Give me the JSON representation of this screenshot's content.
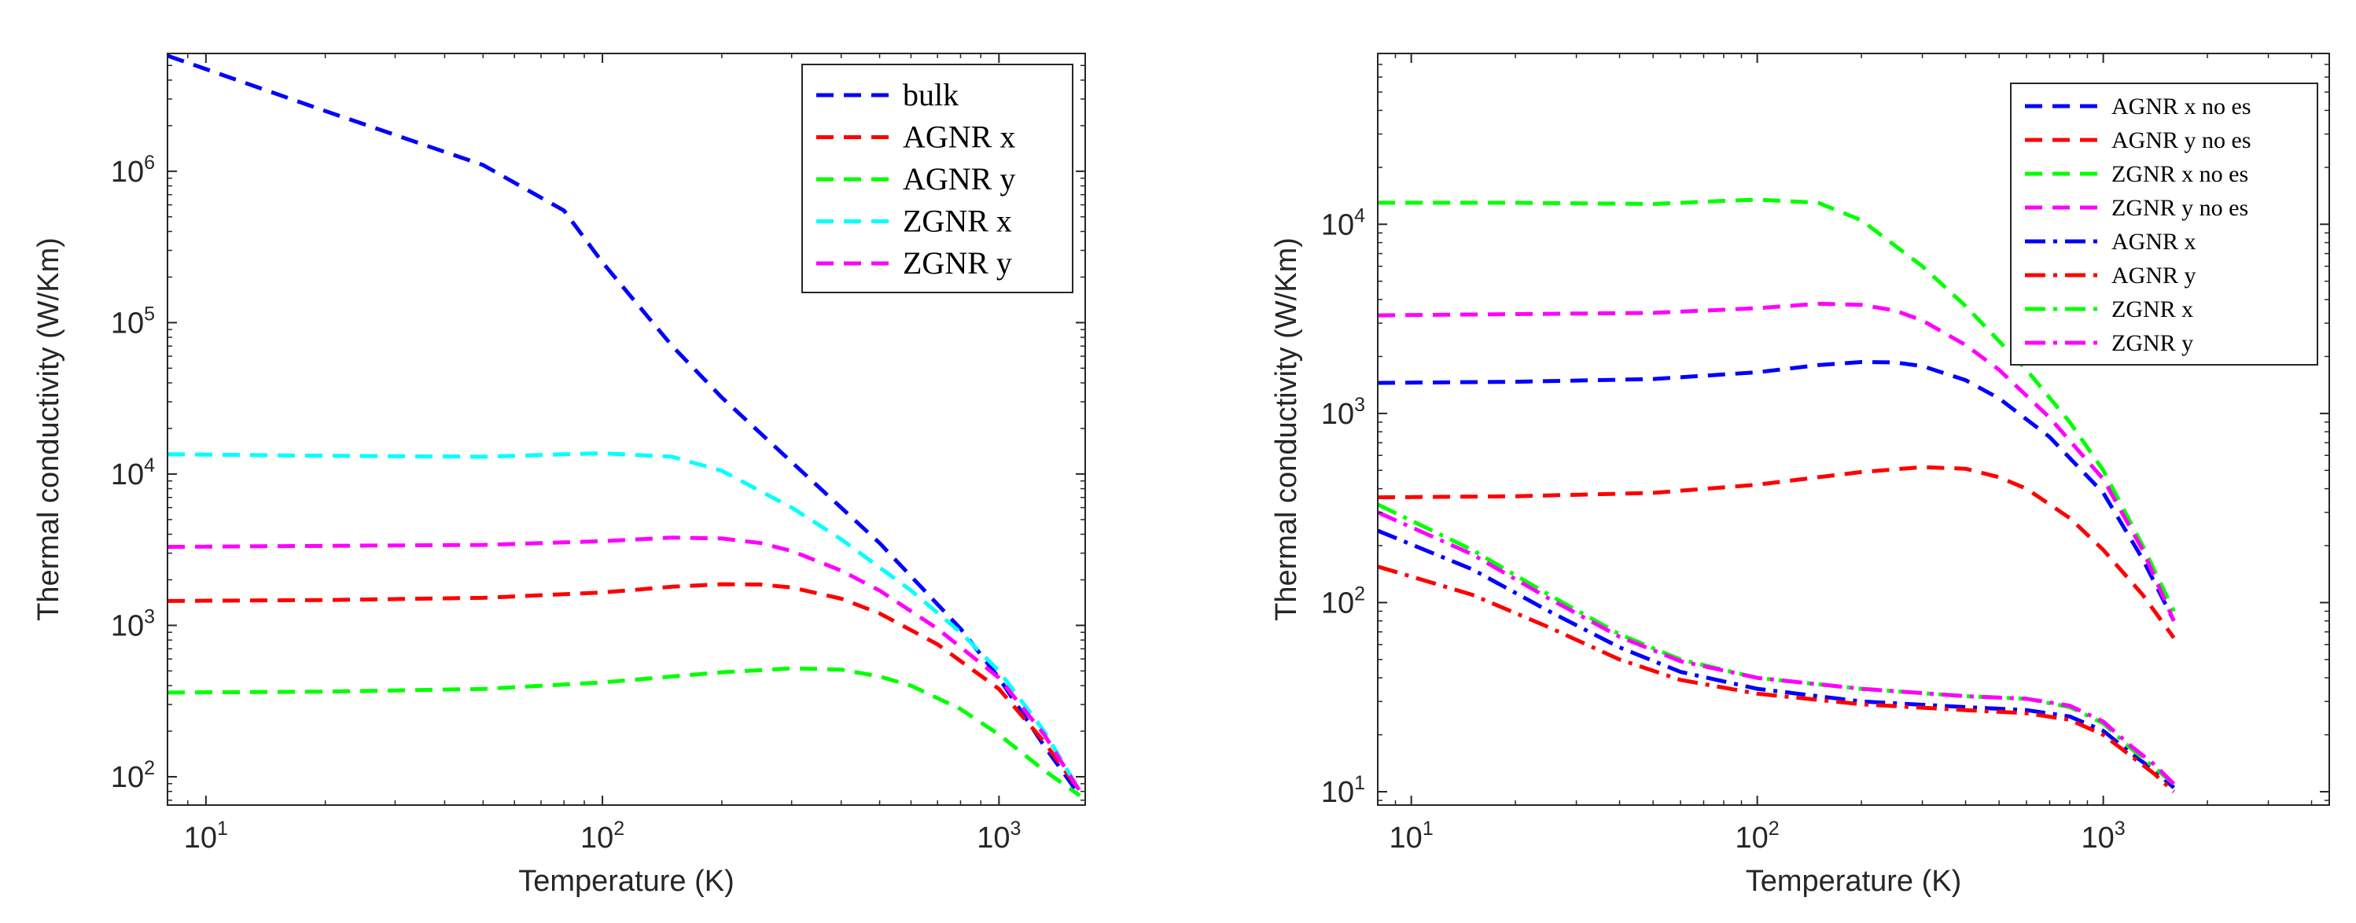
{
  "chart_data": [
    {
      "type": "line",
      "xlabel": "Temperature (K)",
      "ylabel": "Thermal conductivity (W/Km)",
      "xscale": "log",
      "yscale": "log",
      "xlim": [
        8,
        1650
      ],
      "ylim": [
        65,
        6000000
      ],
      "xticks": [
        {
          "base": "10",
          "exp": "1",
          "value": 10
        },
        {
          "base": "10",
          "exp": "2",
          "value": 100
        },
        {
          "base": "10",
          "exp": "3",
          "value": 1000
        }
      ],
      "yticks": [
        {
          "base": "10",
          "exp": "2",
          "value": 100
        },
        {
          "base": "10",
          "exp": "3",
          "value": 1000
        },
        {
          "base": "10",
          "exp": "4",
          "value": 10000
        },
        {
          "base": "10",
          "exp": "5",
          "value": 100000
        },
        {
          "base": "10",
          "exp": "6",
          "value": 1000000
        }
      ],
      "grid": false,
      "legend_position": "top-right",
      "series": [
        {
          "name": "bulk",
          "color": "#0000ff",
          "style": "dashed",
          "x": [
            8,
            20,
            50,
            80,
            100,
            150,
            200,
            300,
            500,
            800,
            1000,
            1300,
            1600
          ],
          "y": [
            5800000,
            2500000,
            1100000,
            550000,
            250000,
            70000,
            32000,
            12000,
            3500,
            950,
            450,
            160,
            75
          ]
        },
        {
          "name": "AGNR x",
          "color": "#ff0000",
          "style": "dashed",
          "x": [
            8,
            20,
            50,
            100,
            150,
            200,
            250,
            300,
            400,
            500,
            700,
            1000,
            1300,
            1600
          ],
          "y": [
            1450,
            1470,
            1520,
            1650,
            1800,
            1870,
            1860,
            1780,
            1500,
            1200,
            750,
            380,
            170,
            80
          ]
        },
        {
          "name": "AGNR y",
          "color": "#00ff00",
          "style": "dashed",
          "x": [
            8,
            20,
            50,
            100,
            150,
            200,
            300,
            400,
            500,
            600,
            800,
            1000,
            1300,
            1600
          ],
          "y": [
            360,
            365,
            380,
            420,
            460,
            490,
            520,
            510,
            460,
            400,
            280,
            190,
            110,
            75
          ]
        },
        {
          "name": "ZGNR x",
          "color": "#00ffff",
          "style": "dashed",
          "x": [
            8,
            20,
            50,
            80,
            100,
            150,
            200,
            300,
            400,
            600,
            800,
            1000,
            1300,
            1600
          ],
          "y": [
            13500,
            13200,
            13000,
            13500,
            13700,
            13000,
            10500,
            6000,
            3700,
            1700,
            900,
            500,
            200,
            80
          ]
        },
        {
          "name": "ZGNR y",
          "color": "#ff00ff",
          "style": "dashed",
          "x": [
            8,
            20,
            50,
            100,
            150,
            200,
            250,
            300,
            400,
            500,
            700,
            1000,
            1300,
            1600
          ],
          "y": [
            3300,
            3350,
            3400,
            3600,
            3800,
            3750,
            3500,
            3100,
            2300,
            1700,
            950,
            450,
            190,
            80
          ]
        }
      ]
    },
    {
      "type": "line",
      "xlabel": "Temperature (K)",
      "ylabel": "Thermal conductivity (W/Km)",
      "xscale": "log",
      "yscale": "log",
      "xlim": [
        8,
        4500
      ],
      "ylim": [
        8.5,
        80000
      ],
      "xticks": [
        {
          "base": "10",
          "exp": "1",
          "value": 10
        },
        {
          "base": "10",
          "exp": "2",
          "value": 100
        },
        {
          "base": "10",
          "exp": "3",
          "value": 1000
        }
      ],
      "yticks": [
        {
          "base": "10",
          "exp": "1",
          "value": 10
        },
        {
          "base": "10",
          "exp": "2",
          "value": 100
        },
        {
          "base": "10",
          "exp": "3",
          "value": 1000
        },
        {
          "base": "10",
          "exp": "4",
          "value": 10000
        }
      ],
      "grid": false,
      "legend_position": "top-right",
      "series": [
        {
          "name": "AGNR x no es",
          "color": "#0000ff",
          "style": "dashed",
          "x": [
            8,
            20,
            50,
            100,
            150,
            200,
            250,
            300,
            400,
            500,
            700,
            1000,
            1300,
            1600
          ],
          "y": [
            1450,
            1470,
            1520,
            1650,
            1800,
            1870,
            1860,
            1780,
            1500,
            1200,
            750,
            380,
            170,
            80
          ]
        },
        {
          "name": "AGNR y no es",
          "color": "#ff0000",
          "style": "dashed",
          "x": [
            8,
            20,
            50,
            100,
            150,
            200,
            300,
            400,
            500,
            600,
            800,
            1000,
            1300,
            1600
          ],
          "y": [
            360,
            365,
            380,
            420,
            460,
            490,
            520,
            510,
            460,
            400,
            280,
            190,
            110,
            65
          ]
        },
        {
          "name": "ZGNR x no es",
          "color": "#00ff00",
          "style": "dashed",
          "x": [
            8,
            20,
            50,
            80,
            100,
            150,
            200,
            300,
            400,
            600,
            800,
            1000,
            1300,
            1600
          ],
          "y": [
            13000,
            13000,
            12800,
            13300,
            13500,
            13000,
            10500,
            6000,
            3700,
            1700,
            900,
            500,
            200,
            90
          ]
        },
        {
          "name": "ZGNR y no es",
          "color": "#ff00ff",
          "style": "dashed",
          "x": [
            8,
            20,
            50,
            100,
            150,
            200,
            250,
            300,
            400,
            500,
            700,
            1000,
            1300,
            1600
          ],
          "y": [
            3300,
            3350,
            3400,
            3600,
            3800,
            3750,
            3500,
            3100,
            2300,
            1700,
            950,
            450,
            190,
            80
          ]
        },
        {
          "name": "AGNR x",
          "color": "#0000ff",
          "style": "dashdot",
          "x": [
            8,
            15,
            25,
            40,
            60,
            100,
            200,
            400,
            600,
            800,
            1000,
            1200,
            1400,
            1600
          ],
          "y": [
            240,
            150,
            90,
            58,
            43,
            35,
            30,
            28,
            27,
            25,
            21,
            16,
            13,
            10.5
          ]
        },
        {
          "name": "AGNR y",
          "color": "#ff0000",
          "style": "dashdot",
          "x": [
            8,
            15,
            25,
            40,
            60,
            100,
            200,
            400,
            600,
            800,
            1000,
            1200,
            1400,
            1600
          ],
          "y": [
            155,
            110,
            74,
            50,
            39,
            33,
            29,
            27,
            26,
            24,
            20,
            15.5,
            12.5,
            10
          ]
        },
        {
          "name": "ZGNR x",
          "color": "#00ff00",
          "style": "dashdot",
          "x": [
            8,
            15,
            25,
            40,
            60,
            100,
            200,
            400,
            600,
            800,
            1000,
            1200,
            1400,
            1600
          ],
          "y": [
            330,
            190,
            110,
            68,
            50,
            40,
            35,
            32,
            31,
            28,
            23,
            17,
            13.5,
            11
          ]
        },
        {
          "name": "ZGNR y",
          "color": "#ff00ff",
          "style": "dashdot",
          "x": [
            8,
            15,
            25,
            40,
            60,
            100,
            200,
            400,
            600,
            800,
            1000,
            1200,
            1400,
            1600
          ],
          "y": [
            300,
            180,
            105,
            66,
            49,
            40,
            35,
            32,
            31,
            28.5,
            23.5,
            17.5,
            14,
            11
          ]
        }
      ]
    }
  ]
}
